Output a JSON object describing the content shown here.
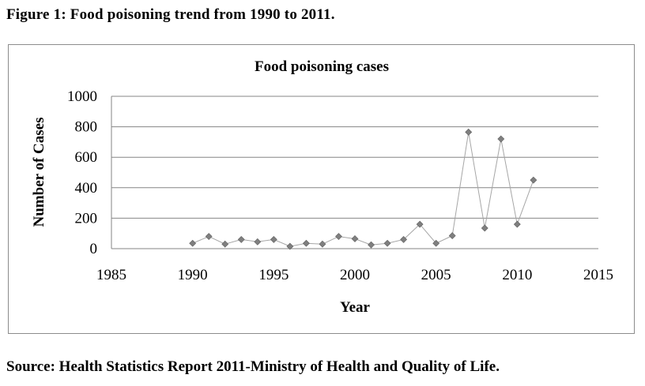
{
  "figure_caption": "Figure 1: Food poisoning trend from 1990 to 2011.",
  "source_note": "Source: Health Statistics Report 2011-Ministry of Health and Quality of Life.",
  "chart_data": {
    "type": "scatter",
    "title": "Food poisoning cases",
    "xlabel": "Year",
    "ylabel": "Number of Cases",
    "xlim": [
      1985,
      2015
    ],
    "ylim": [
      0,
      1000
    ],
    "xticks": [
      1985,
      1990,
      1995,
      2000,
      2005,
      2010,
      2015
    ],
    "yticks": [
      0,
      200,
      400,
      600,
      800,
      1000
    ],
    "grid": true,
    "legend": "none",
    "line_color": "#a6a6a6",
    "marker_color": "#7f7f7f",
    "series": [
      {
        "x": [
          1990,
          1991,
          1992,
          1993,
          1994,
          1995,
          1996,
          1997,
          1998,
          1999,
          2000,
          2001,
          2002,
          2003,
          2004,
          2005,
          2006,
          2007,
          2008,
          2009,
          2010,
          2011
        ],
        "y": [
          35,
          80,
          30,
          60,
          45,
          60,
          15,
          35,
          30,
          80,
          65,
          25,
          35,
          60,
          160,
          35,
          85,
          765,
          135,
          720,
          160,
          450
        ]
      }
    ]
  }
}
